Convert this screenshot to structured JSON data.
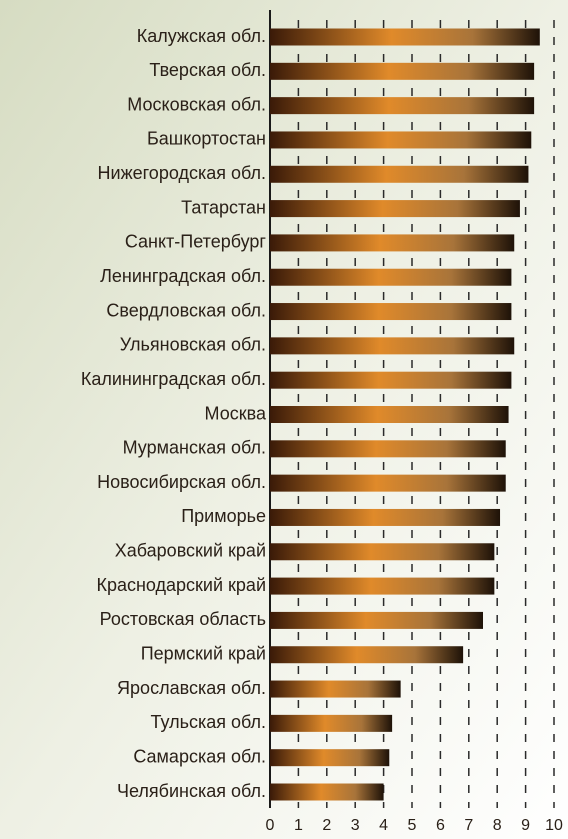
{
  "chart_data": {
    "type": "hbar",
    "categories": [
      "Калужская обл.",
      "Тверская обл.",
      "Московская обл.",
      "Башкортостан",
      "Нижегородская обл.",
      "Татарстан",
      "Санкт-Петербург",
      "Ленинградская обл.",
      "Свердловская обл.",
      "Ульяновская обл.",
      "Калининградская обл.",
      "Москва",
      "Мурманская обл.",
      "Новосибирская обл.",
      "Приморье",
      "Хабаровский край",
      "Краснодарский край",
      "Ростовская область",
      "Пермский край",
      "Ярославская обл.",
      "Тульская обл.",
      "Самарская обл.",
      "Челябинская обл."
    ],
    "values": [
      9.5,
      9.3,
      9.3,
      9.2,
      9.1,
      8.8,
      8.6,
      8.5,
      8.5,
      8.6,
      8.5,
      8.4,
      8.3,
      8.3,
      8.1,
      7.9,
      7.9,
      7.5,
      6.8,
      4.6,
      4.3,
      4.2,
      4.0
    ],
    "xlim": [
      0,
      10
    ],
    "xticks": [
      0,
      1,
      2,
      3,
      4,
      5,
      6,
      7,
      8,
      9,
      10
    ],
    "grid": true
  }
}
